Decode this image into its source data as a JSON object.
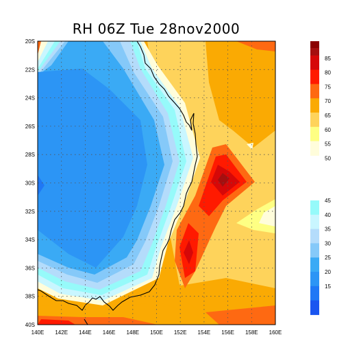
{
  "title": "RH 06Z Tue 28nov2000",
  "map": {
    "lon_range": [
      140,
      160
    ],
    "lat_range": [
      -40,
      -20
    ],
    "lon_ticks": [
      "140E",
      "142E",
      "144E",
      "146E",
      "148E",
      "150E",
      "152E",
      "154E",
      "156E",
      "158E",
      "160E"
    ],
    "lat_ticks": [
      "20S",
      "22S",
      "24S",
      "26S",
      "28S",
      "30S",
      "32S",
      "34S",
      "36S",
      "38S",
      "40S"
    ],
    "grid": "dotted"
  },
  "colorbar": {
    "upper_labels": [
      "85",
      "80",
      "75",
      "70",
      "65",
      "60",
      "55",
      "50"
    ],
    "lower_labels": [
      "45",
      "40",
      "35",
      "30",
      "25",
      "20",
      "15"
    ],
    "colors": {
      "c10": "#1a55f0",
      "c15": "#1f78f5",
      "c20": "#2c95f5",
      "c25": "#3aaaf5",
      "c30": "#85c9f9",
      "c35": "#b4dcfb",
      "c40": "#c9f6ff",
      "c45": "#96fafa",
      "c50": "#fffddb",
      "c55": "#feff83",
      "c60": "#fed35b",
      "c65": "#faaa03",
      "c70": "#fe6912",
      "c75": "#ff1a00",
      "c80": "#d60808",
      "c85": "#a50f0f"
    }
  }
}
